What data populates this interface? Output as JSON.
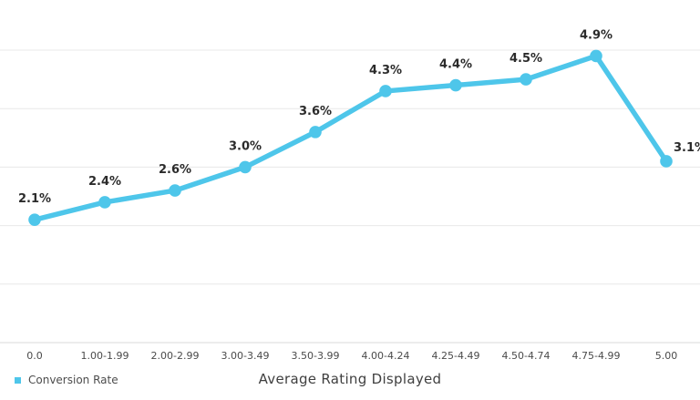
{
  "chart_data": {
    "type": "line",
    "title": "",
    "categories": [
      "0.0",
      "1.00-1.99",
      "2.00-2.99",
      "3.00-3.49",
      "3.50-3.99",
      "4.00-4.24",
      "4.25-4.49",
      "4.50-4.74",
      "4.75-4.99",
      "5.00"
    ],
    "series": [
      {
        "name": "Conversion Rate",
        "values": [
          2.1,
          2.4,
          2.6,
          3.0,
          3.6,
          4.3,
          4.4,
          4.5,
          4.9,
          3.1
        ],
        "labels": [
          "2.1%",
          "2.4%",
          "2.6%",
          "3.0%",
          "3.6%",
          "4.3%",
          "4.4%",
          "4.5%",
          "4.9%",
          "3.1%"
        ],
        "color": "#4EC6EA"
      }
    ],
    "xlabel": "Average Rating Displayed",
    "ylabel": "",
    "ylim": [
      0,
      5.9
    ],
    "grid": "horizontal",
    "gridline_values": [
      1,
      2,
      3,
      4,
      5
    ],
    "markers": true,
    "legend_position": "bottom-left"
  },
  "colors": {
    "line": "#4EC6EA",
    "marker": "#4EC6EA",
    "data_label": "#2b2b2b",
    "tick_label": "#4a4a4a",
    "axis_title": "#3f3f3f",
    "legend_text": "#4d4d4d",
    "gridline": "#e8e8e8",
    "axis_line": "#d8d8d8",
    "background": "#ffffff"
  }
}
